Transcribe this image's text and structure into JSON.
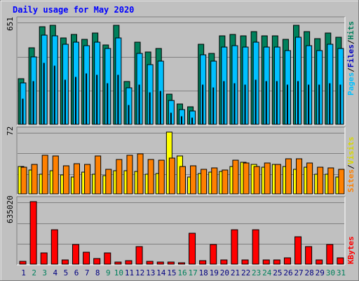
{
  "title": "Daily usage for May 2020",
  "colors": {
    "background": "#c0c0c0",
    "panel": "#c0c0c0",
    "hits": "#00805c",
    "files": "#00c0ff",
    "pages": "#0000c0",
    "visits": "#ffff00",
    "sites": "#ff8000",
    "kbytes": "#ff0000",
    "title_text": "#0000ff",
    "weekend_day": "#00805c",
    "weekday": "#000080"
  },
  "chart_data": [
    {
      "type": "bar",
      "panel": "hits-files-pages",
      "y_max_label": "651",
      "ylim": [
        0,
        651
      ],
      "right_label_parts": [
        "Pages",
        "/",
        "Files",
        "/",
        "Hits"
      ],
      "categories": [
        "1",
        "2",
        "3",
        "4",
        "5",
        "6",
        "7",
        "8",
        "9",
        "10",
        "11",
        "12",
        "13",
        "14",
        "15",
        "16",
        "17",
        "18",
        "19",
        "20",
        "21",
        "22",
        "23",
        "24",
        "25",
        "26",
        "27",
        "28",
        "29",
        "30",
        "31"
      ],
      "series": [
        {
          "name": "Hits",
          "values": [
            290,
            485,
            620,
            630,
            550,
            570,
            540,
            580,
            505,
            630,
            270,
            520,
            460,
            480,
            190,
            130,
            110,
            510,
            450,
            560,
            570,
            560,
            590,
            560,
            560,
            540,
            630,
            590,
            545,
            580,
            555
          ]
        },
        {
          "name": "Files",
          "values": [
            265,
            430,
            565,
            560,
            510,
            520,
            500,
            520,
            480,
            550,
            230,
            450,
            380,
            400,
            150,
            95,
            85,
            440,
            400,
            490,
            500,
            490,
            520,
            490,
            490,
            470,
            555,
            500,
            470,
            510,
            480
          ]
        },
        {
          "name": "Pages",
          "values": [
            160,
            270,
            390,
            370,
            280,
            300,
            320,
            310,
            260,
            310,
            120,
            250,
            200,
            210,
            70,
            50,
            40,
            250,
            230,
            270,
            260,
            250,
            280,
            270,
            270,
            250,
            270,
            250,
            250,
            260,
            250
          ]
        }
      ]
    },
    {
      "type": "bar",
      "panel": "visits-sites",
      "y_max_label": "72",
      "ylim": [
        0,
        72
      ],
      "right_label_parts": [
        "Sites",
        "/",
        "Visits"
      ],
      "categories": [
        "1",
        "2",
        "3",
        "4",
        "5",
        "6",
        "7",
        "8",
        "9",
        "10",
        "11",
        "12",
        "13",
        "14",
        "15",
        "16",
        "17",
        "18",
        "19",
        "20",
        "21",
        "22",
        "23",
        "24",
        "25",
        "26",
        "27",
        "28",
        "29",
        "30",
        "31"
      ],
      "series": [
        {
          "name": "Visits",
          "values": [
            32,
            28,
            23,
            27,
            22,
            20,
            25,
            23,
            21,
            27,
            27,
            26,
            23,
            24,
            72,
            44,
            20,
            24,
            25,
            26,
            32,
            37,
            34,
            31,
            34,
            32,
            29,
            31,
            23,
            23,
            20
          ]
        },
        {
          "name": "Sites",
          "values": [
            31,
            34,
            45,
            44,
            33,
            35,
            34,
            44,
            29,
            40,
            45,
            47,
            40,
            39,
            42,
            32,
            33,
            29,
            30,
            28,
            39,
            36,
            32,
            36,
            34,
            41,
            41,
            36,
            31,
            30,
            29
          ]
        }
      ]
    },
    {
      "type": "bar",
      "panel": "kbytes",
      "y_max_label": "635020",
      "ylim": [
        0,
        635020
      ],
      "right_label_parts": [
        "KBytes"
      ],
      "categories": [
        "1",
        "2",
        "3",
        "4",
        "5",
        "6",
        "7",
        "8",
        "9",
        "10",
        "11",
        "12",
        "13",
        "14",
        "15",
        "16",
        "17",
        "18",
        "19",
        "20",
        "21",
        "22",
        "23",
        "24",
        "25",
        "26",
        "27",
        "28",
        "29",
        "30",
        "31"
      ],
      "series": [
        {
          "name": "KBytes",
          "values": [
            25000,
            635020,
            115000,
            350000,
            45000,
            200000,
            120000,
            60000,
            115000,
            20000,
            35000,
            175000,
            25000,
            20000,
            18000,
            15000,
            315000,
            35000,
            200000,
            45000,
            350000,
            45000,
            350000,
            45000,
            45000,
            65000,
            280000,
            175000,
            45000,
            200000,
            65000
          ]
        }
      ]
    }
  ],
  "x_axis": {
    "day_labels": [
      "1",
      "2",
      "3",
      "4",
      "5",
      "6",
      "7",
      "8",
      "9",
      "10",
      "11",
      "12",
      "13",
      "14",
      "15",
      "16",
      "17",
      "18",
      "19",
      "20",
      "21",
      "22",
      "23",
      "24",
      "25",
      "26",
      "27",
      "28",
      "29",
      "30",
      "31"
    ],
    "weekend_days": [
      2,
      3,
      9,
      10,
      16,
      17,
      23,
      24,
      30,
      31
    ]
  }
}
